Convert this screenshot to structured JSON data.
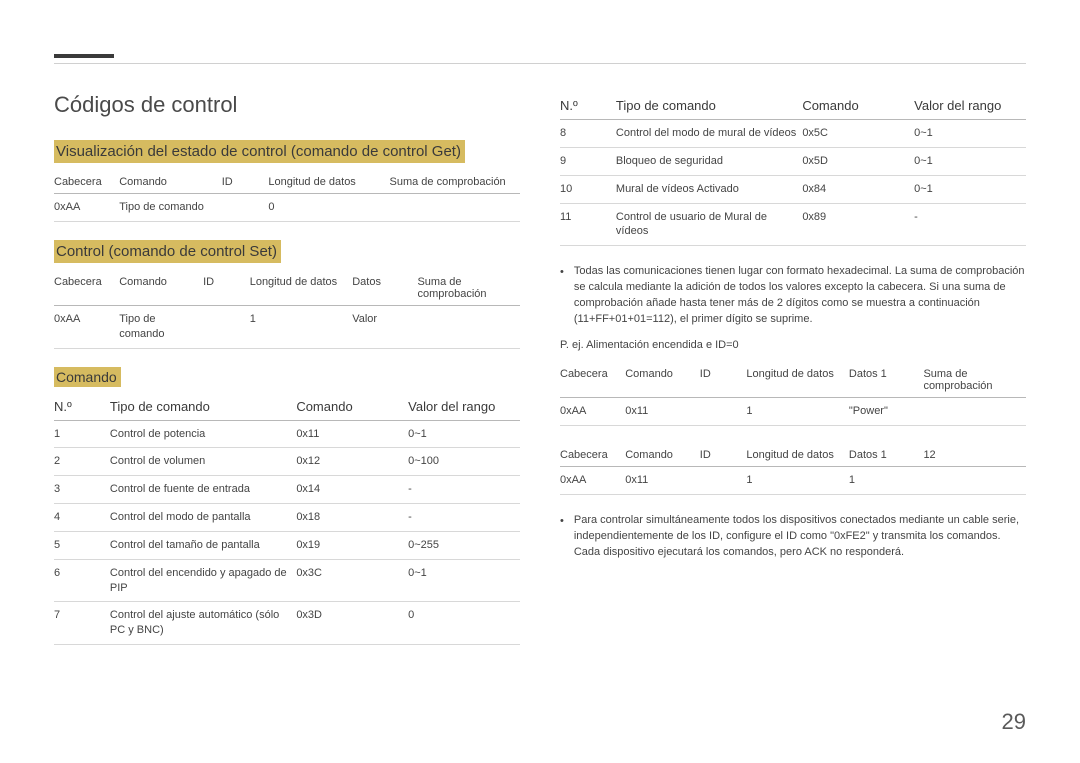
{
  "pageNumber": "29",
  "title": "Códigos de control",
  "section1": {
    "heading": "Visualización del estado de control (comando de control Get)",
    "headers": [
      "Cabecera",
      "Comando",
      "ID",
      "Longitud de datos",
      "Suma de comprobación"
    ],
    "row": [
      "0xAA",
      "Tipo de comando",
      "",
      "0",
      ""
    ]
  },
  "section2": {
    "heading": "Control (comando de control Set)",
    "headers": [
      "Cabecera",
      "Comando",
      "ID",
      "Longitud de datos",
      "Datos",
      "Suma de comprobación"
    ],
    "row": [
      "0xAA",
      "Tipo de comando",
      "",
      "1",
      "Valor",
      ""
    ]
  },
  "section3": {
    "heading": "Comando",
    "headers": [
      "N.º",
      "Tipo de comando",
      "Comando",
      "Valor del rango"
    ],
    "rowsLeft": [
      [
        "1",
        "Control de potencia",
        "0x11",
        "0~1"
      ],
      [
        "2",
        "Control de volumen",
        "0x12",
        "0~100"
      ],
      [
        "3",
        "Control de fuente de entrada",
        "0x14",
        "-"
      ],
      [
        "4",
        "Control del modo de pantalla",
        "0x18",
        "-"
      ],
      [
        "5",
        "Control del tamaño de pantalla",
        "0x19",
        "0~255"
      ],
      [
        "6",
        "Control del encendido y apagado de PIP",
        "0x3C",
        "0~1"
      ],
      [
        "7",
        "Control del ajuste automático (sólo PC y BNC)",
        "0x3D",
        "0"
      ]
    ],
    "rowsRight": [
      [
        "8",
        "Control del modo de mural de vídeos",
        "0x5C",
        "0~1"
      ],
      [
        "9",
        "Bloqueo de seguridad",
        "0x5D",
        "0~1"
      ],
      [
        "10",
        "Mural de vídeos Activado",
        "0x84",
        "0~1"
      ],
      [
        "11",
        "Control de usuario de Mural de vídeos",
        "0x89",
        "-"
      ]
    ]
  },
  "bullet1": "Todas las comunicaciones tienen lugar con formato hexadecimal. La suma de comprobación se calcula mediante la adición de todos los valores excepto la cabecera. Si una suma de comprobación añade hasta tener más de 2 dígitos como se muestra a continuación (11+FF+01+01=112), el primer dígito se suprime.",
  "exampleLabel": "P. ej. Alimentación encendida e ID=0",
  "example1": {
    "headers": [
      "Cabecera",
      "Comando",
      "ID",
      "Longitud de datos",
      "Datos 1",
      "Suma de comprobación"
    ],
    "row": [
      "0xAA",
      "0x11",
      "",
      "1",
      "\"Power\"",
      ""
    ]
  },
  "example2": {
    "headers": [
      "Cabecera",
      "Comando",
      "ID",
      "Longitud de datos",
      "Datos 1",
      "12"
    ],
    "row": [
      "0xAA",
      "0x11",
      "",
      "1",
      "1",
      ""
    ]
  },
  "bullet2": "Para controlar simultáneamente todos los dispositivos conectados mediante un cable serie, independientemente de los ID, configure el ID como \"0xFE2\" y transmita los comandos. Cada dispositivo ejecutará los comandos, pero ACK no responderá.",
  "colwidths": {
    "protocol5": [
      "14%",
      "22%",
      "10%",
      "26%",
      "28%"
    ],
    "protocol6s": [
      "14%",
      "18%",
      "10%",
      "22%",
      "14%",
      "22%"
    ],
    "cmd": [
      "12%",
      "40%",
      "24%",
      "24%"
    ],
    "ex6": [
      "14%",
      "16%",
      "10%",
      "22%",
      "16%",
      "22%"
    ]
  }
}
